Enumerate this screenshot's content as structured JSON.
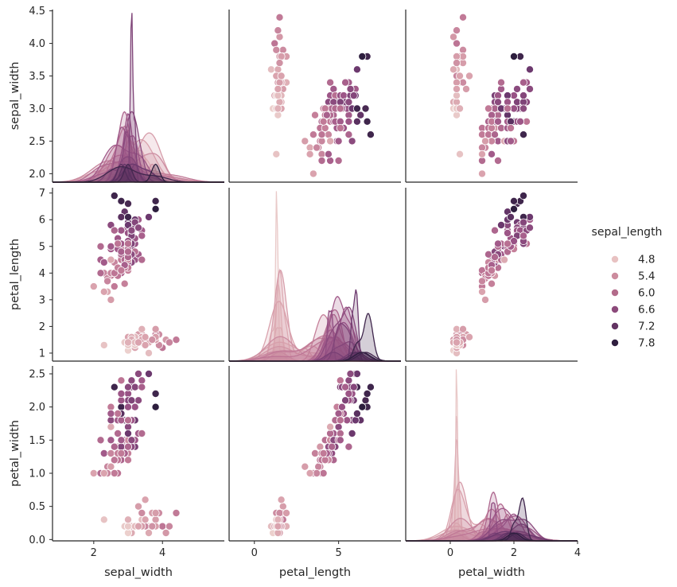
{
  "chart_data": {
    "type": "scatter",
    "title": "",
    "variables": [
      "sepal_width",
      "petal_length",
      "petal_width"
    ],
    "hue": "sepal_length",
    "axis_labels": {
      "sepal_width": "sepal_width",
      "petal_length": "petal_length",
      "petal_width": "petal_width"
    },
    "axes": {
      "sepal_width": {
        "lim": [
          0.8,
          5.8
        ],
        "ticks": [
          "2",
          "4"
        ]
      },
      "petal_length": {
        "lim": [
          -1.5,
          8.7
        ],
        "ticks": [
          "0",
          "5"
        ]
      },
      "petal_width": {
        "lim": [
          -1.4,
          4.0
        ],
        "ticks": [
          "0",
          "2",
          "4"
        ]
      }
    },
    "y_axes": {
      "sepal_width": {
        "lim": [
          1.87,
          4.52
        ],
        "ticks": [
          "2.0",
          "2.5",
          "3.0",
          "3.5",
          "4.0",
          "4.5"
        ]
      },
      "petal_length": {
        "lim": [
          0.7,
          7.2
        ],
        "ticks": [
          "1",
          "2",
          "3",
          "4",
          "5",
          "6",
          "7"
        ]
      },
      "petal_width": {
        "lim": [
          -0.02,
          2.62
        ],
        "ticks": [
          "0.0",
          "0.5",
          "1.0",
          "1.5",
          "2.0",
          "2.5"
        ]
      }
    },
    "diagonal": "kde",
    "legend": {
      "title": "sepal_length",
      "position": "right",
      "entries": [
        {
          "label": "4.8",
          "color": "#e8c2c2"
        },
        {
          "label": "5.4",
          "color": "#cc8c9e"
        },
        {
          "label": "6.0",
          "color": "#b36b8a"
        },
        {
          "label": "6.6",
          "color": "#8c4a7b"
        },
        {
          "label": "7.2",
          "color": "#633463"
        },
        {
          "label": "7.8",
          "color": "#2f1e3f"
        }
      ]
    },
    "hue_range": [
      4.3,
      7.9
    ],
    "palette": [
      "#ecd0cd",
      "#d9a2ad",
      "#c07896",
      "#9a5386",
      "#6e3a6f",
      "#2d1e3e"
    ],
    "points": [
      [
        5.1,
        3.5,
        1.4,
        0.2
      ],
      [
        4.9,
        3.0,
        1.4,
        0.2
      ],
      [
        4.7,
        3.2,
        1.3,
        0.2
      ],
      [
        4.6,
        3.1,
        1.5,
        0.2
      ],
      [
        5.0,
        3.6,
        1.4,
        0.2
      ],
      [
        5.4,
        3.9,
        1.7,
        0.4
      ],
      [
        4.6,
        3.4,
        1.4,
        0.3
      ],
      [
        5.0,
        3.4,
        1.5,
        0.2
      ],
      [
        4.4,
        2.9,
        1.4,
        0.2
      ],
      [
        4.9,
        3.1,
        1.5,
        0.1
      ],
      [
        5.4,
        3.7,
        1.5,
        0.2
      ],
      [
        4.8,
        3.4,
        1.6,
        0.2
      ],
      [
        4.8,
        3.0,
        1.4,
        0.1
      ],
      [
        4.3,
        3.0,
        1.1,
        0.1
      ],
      [
        5.8,
        4.0,
        1.2,
        0.2
      ],
      [
        5.7,
        4.4,
        1.5,
        0.4
      ],
      [
        5.4,
        3.9,
        1.3,
        0.4
      ],
      [
        5.1,
        3.5,
        1.4,
        0.3
      ],
      [
        5.7,
        3.8,
        1.7,
        0.3
      ],
      [
        5.1,
        3.8,
        1.5,
        0.3
      ],
      [
        5.4,
        3.4,
        1.7,
        0.2
      ],
      [
        5.1,
        3.7,
        1.5,
        0.4
      ],
      [
        4.6,
        3.6,
        1.0,
        0.2
      ],
      [
        5.1,
        3.3,
        1.7,
        0.5
      ],
      [
        4.8,
        3.4,
        1.9,
        0.2
      ],
      [
        5.0,
        3.0,
        1.6,
        0.2
      ],
      [
        5.0,
        3.4,
        1.6,
        0.4
      ],
      [
        5.2,
        3.5,
        1.5,
        0.2
      ],
      [
        5.2,
        3.4,
        1.4,
        0.2
      ],
      [
        4.7,
        3.2,
        1.6,
        0.2
      ],
      [
        4.8,
        3.1,
        1.6,
        0.2
      ],
      [
        5.4,
        3.4,
        1.5,
        0.4
      ],
      [
        5.2,
        4.1,
        1.5,
        0.1
      ],
      [
        5.5,
        4.2,
        1.4,
        0.2
      ],
      [
        4.9,
        3.1,
        1.5,
        0.2
      ],
      [
        5.0,
        3.2,
        1.2,
        0.2
      ],
      [
        5.5,
        3.5,
        1.3,
        0.2
      ],
      [
        4.9,
        3.6,
        1.4,
        0.1
      ],
      [
        4.4,
        3.0,
        1.3,
        0.2
      ],
      [
        5.1,
        3.4,
        1.5,
        0.2
      ],
      [
        5.0,
        3.5,
        1.3,
        0.3
      ],
      [
        4.5,
        2.3,
        1.3,
        0.3
      ],
      [
        4.4,
        3.2,
        1.3,
        0.2
      ],
      [
        5.0,
        3.5,
        1.6,
        0.6
      ],
      [
        5.1,
        3.8,
        1.9,
        0.4
      ],
      [
        4.8,
        3.0,
        1.4,
        0.3
      ],
      [
        5.1,
        3.8,
        1.6,
        0.2
      ],
      [
        4.6,
        3.2,
        1.4,
        0.2
      ],
      [
        5.3,
        3.7,
        1.5,
        0.2
      ],
      [
        5.0,
        3.3,
        1.4,
        0.2
      ],
      [
        7.0,
        3.2,
        4.7,
        1.4
      ],
      [
        6.4,
        3.2,
        4.5,
        1.5
      ],
      [
        6.9,
        3.1,
        4.9,
        1.5
      ],
      [
        5.5,
        2.3,
        4.0,
        1.3
      ],
      [
        6.5,
        2.8,
        4.6,
        1.5
      ],
      [
        5.7,
        2.8,
        4.5,
        1.3
      ],
      [
        6.3,
        3.3,
        4.7,
        1.6
      ],
      [
        4.9,
        2.4,
        3.3,
        1.0
      ],
      [
        6.6,
        2.9,
        4.6,
        1.3
      ],
      [
        5.2,
        2.7,
        3.9,
        1.4
      ],
      [
        5.0,
        2.0,
        3.5,
        1.0
      ],
      [
        5.9,
        3.0,
        4.2,
        1.5
      ],
      [
        6.0,
        2.2,
        4.0,
        1.0
      ],
      [
        6.1,
        2.9,
        4.7,
        1.4
      ],
      [
        5.6,
        2.9,
        3.6,
        1.3
      ],
      [
        6.7,
        3.1,
        4.4,
        1.4
      ],
      [
        5.6,
        3.0,
        4.5,
        1.5
      ],
      [
        5.8,
        2.7,
        4.1,
        1.0
      ],
      [
        6.2,
        2.2,
        4.5,
        1.5
      ],
      [
        5.6,
        2.5,
        3.9,
        1.1
      ],
      [
        5.9,
        3.2,
        4.8,
        1.8
      ],
      [
        6.1,
        2.8,
        4.0,
        1.3
      ],
      [
        6.3,
        2.5,
        4.9,
        1.5
      ],
      [
        6.1,
        2.8,
        4.7,
        1.2
      ],
      [
        6.4,
        2.9,
        4.3,
        1.3
      ],
      [
        6.6,
        3.0,
        4.4,
        1.4
      ],
      [
        6.8,
        2.8,
        4.8,
        1.4
      ],
      [
        6.7,
        3.0,
        5.0,
        1.7
      ],
      [
        6.0,
        2.9,
        4.5,
        1.5
      ],
      [
        5.7,
        2.6,
        3.5,
        1.0
      ],
      [
        5.5,
        2.4,
        3.8,
        1.1
      ],
      [
        5.5,
        2.4,
        3.7,
        1.0
      ],
      [
        5.8,
        2.7,
        3.9,
        1.2
      ],
      [
        6.0,
        2.7,
        5.1,
        1.6
      ],
      [
        5.4,
        3.0,
        4.5,
        1.5
      ],
      [
        6.0,
        3.4,
        4.5,
        1.6
      ],
      [
        6.7,
        3.1,
        4.7,
        1.5
      ],
      [
        6.3,
        2.3,
        4.4,
        1.3
      ],
      [
        5.6,
        3.0,
        4.1,
        1.3
      ],
      [
        5.5,
        2.5,
        4.0,
        1.3
      ],
      [
        5.5,
        2.6,
        4.4,
        1.2
      ],
      [
        6.1,
        3.0,
        4.6,
        1.4
      ],
      [
        5.8,
        2.6,
        4.0,
        1.2
      ],
      [
        5.0,
        2.3,
        3.3,
        1.0
      ],
      [
        5.6,
        2.7,
        4.2,
        1.3
      ],
      [
        5.7,
        3.0,
        4.2,
        1.2
      ],
      [
        5.7,
        2.9,
        4.2,
        1.3
      ],
      [
        6.2,
        2.9,
        4.3,
        1.3
      ],
      [
        5.1,
        2.5,
        3.0,
        1.1
      ],
      [
        5.7,
        2.8,
        4.1,
        1.3
      ],
      [
        6.3,
        3.3,
        6.0,
        2.5
      ],
      [
        5.8,
        2.7,
        5.1,
        1.9
      ],
      [
        7.1,
        3.0,
        5.9,
        2.1
      ],
      [
        6.3,
        2.9,
        5.6,
        1.8
      ],
      [
        6.5,
        3.0,
        5.8,
        2.2
      ],
      [
        7.6,
        3.0,
        6.6,
        2.1
      ],
      [
        4.9,
        2.5,
        4.5,
        1.7
      ],
      [
        7.3,
        2.9,
        6.3,
        1.8
      ],
      [
        6.7,
        2.5,
        5.8,
        1.8
      ],
      [
        7.2,
        3.6,
        6.1,
        2.5
      ],
      [
        6.5,
        3.2,
        5.1,
        2.0
      ],
      [
        6.4,
        2.7,
        5.3,
        1.9
      ],
      [
        6.8,
        3.0,
        5.5,
        2.1
      ],
      [
        5.7,
        2.5,
        5.0,
        2.0
      ],
      [
        5.8,
        2.8,
        5.1,
        2.4
      ],
      [
        6.4,
        3.2,
        5.3,
        2.3
      ],
      [
        6.5,
        3.0,
        5.5,
        1.8
      ],
      [
        7.7,
        3.8,
        6.7,
        2.2
      ],
      [
        7.7,
        2.6,
        6.9,
        2.3
      ],
      [
        6.0,
        2.2,
        5.0,
        1.5
      ],
      [
        6.9,
        3.2,
        5.7,
        2.3
      ],
      [
        5.6,
        2.8,
        4.9,
        2.0
      ],
      [
        7.7,
        2.8,
        6.7,
        2.0
      ],
      [
        6.3,
        2.7,
        4.9,
        1.8
      ],
      [
        6.7,
        3.3,
        5.7,
        2.1
      ],
      [
        7.2,
        3.2,
        6.0,
        1.8
      ],
      [
        6.2,
        2.8,
        4.8,
        1.8
      ],
      [
        6.1,
        3.0,
        4.9,
        1.8
      ],
      [
        6.4,
        2.8,
        5.6,
        2.1
      ],
      [
        7.2,
        3.0,
        5.8,
        1.6
      ],
      [
        7.4,
        2.8,
        6.1,
        1.9
      ],
      [
        7.9,
        3.8,
        6.4,
        2.0
      ],
      [
        6.4,
        2.8,
        5.6,
        2.2
      ],
      [
        6.3,
        2.8,
        5.1,
        1.5
      ],
      [
        6.1,
        2.6,
        5.6,
        1.4
      ],
      [
        7.7,
        3.0,
        6.1,
        2.3
      ],
      [
        6.3,
        3.4,
        5.6,
        2.4
      ],
      [
        6.4,
        3.1,
        5.5,
        1.8
      ],
      [
        6.0,
        3.0,
        4.8,
        1.8
      ],
      [
        6.9,
        3.1,
        5.4,
        2.1
      ],
      [
        6.7,
        3.1,
        5.6,
        2.4
      ],
      [
        6.9,
        3.1,
        5.1,
        2.3
      ],
      [
        5.8,
        2.7,
        5.1,
        1.9
      ],
      [
        6.8,
        3.2,
        5.9,
        2.3
      ],
      [
        6.7,
        3.3,
        5.7,
        2.5
      ],
      [
        6.7,
        3.0,
        5.2,
        2.3
      ],
      [
        6.3,
        2.5,
        5.0,
        1.9
      ],
      [
        6.5,
        3.0,
        5.2,
        2.0
      ],
      [
        6.2,
        3.4,
        5.4,
        2.3
      ],
      [
        5.9,
        3.0,
        5.1,
        1.8
      ]
    ]
  }
}
